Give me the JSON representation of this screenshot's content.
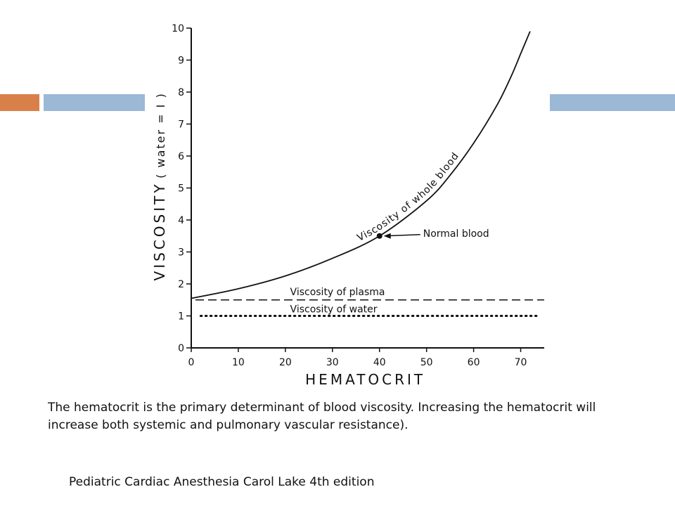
{
  "slide": {
    "caption": "The hematocrit is the primary determinant of blood viscosity. Increasing the hematocrit will increase both systemic and pulmonary vascular resistance).",
    "source": "Pediatric Cardiac Anesthesia Carol Lake 4th edition",
    "colors": {
      "accent_orange": "#d9804a",
      "accent_blue": "#9bb9d6"
    }
  },
  "chart_data": {
    "type": "line",
    "xlabel": "HEMATOCRIT",
    "ylabel": "VISCOSITY",
    "ylabel_note": "( water = I )",
    "xlim": [
      0,
      75
    ],
    "ylim": [
      0,
      10
    ],
    "x_ticks": [
      "0",
      "10",
      "20",
      "30",
      "40",
      "50",
      "60",
      "70"
    ],
    "y_ticks": [
      "0",
      "1",
      "2",
      "3",
      "4",
      "5",
      "6",
      "7",
      "8",
      "9",
      "10"
    ],
    "grid": false,
    "series": [
      {
        "name": "Viscosity of whole blood",
        "style": "solid",
        "x": [
          0,
          10,
          20,
          30,
          40,
          50,
          55,
          60,
          65,
          68,
          70,
          72
        ],
        "y": [
          1.55,
          1.85,
          2.25,
          2.8,
          3.5,
          4.6,
          5.4,
          6.4,
          7.6,
          8.5,
          9.2,
          9.9
        ]
      },
      {
        "name": "Viscosity of plasma",
        "style": "dashed",
        "x": [
          0,
          75
        ],
        "y": [
          1.5,
          1.5
        ]
      },
      {
        "name": "Viscosity of water",
        "style": "dotted",
        "x": [
          2,
          75
        ],
        "y": [
          1.0,
          1.0
        ]
      }
    ],
    "annotations": [
      {
        "text": "Normal blood",
        "x": 40,
        "y": 3.5
      }
    ]
  }
}
